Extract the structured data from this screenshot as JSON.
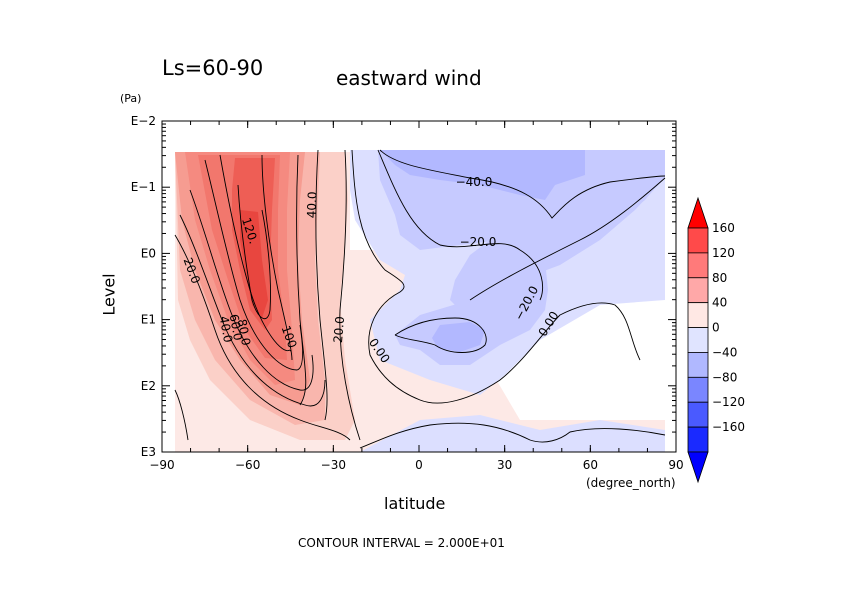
{
  "titles": {
    "left": "Ls=60-90",
    "center": "eastward wind",
    "contour_interval": "CONTOUR INTERVAL = 2.000E+01"
  },
  "chart_data": {
    "type": "contour",
    "title": "eastward wind",
    "subtitle": "Ls=60-90",
    "xlabel": "latitude",
    "xunit": "(degree_north)",
    "ylabel": "Level",
    "yunit": "(Pa)",
    "y_scale": "log",
    "y_inverted": true,
    "xlim": [
      -90,
      90
    ],
    "xticks": [
      -90,
      -60,
      -30,
      0,
      30,
      60,
      90
    ],
    "xtick_labels": [
      "−90",
      "−60",
      "−30",
      "0",
      "30",
      "60",
      "90"
    ],
    "yticks": [
      "E−2",
      "E−1",
      "E0",
      "E1",
      "E2",
      "E3"
    ],
    "contour_interval": 20,
    "contour_labels": [
      {
        "text": "120.",
        "lat": -62,
        "level": "3E-1"
      },
      {
        "text": "40.0",
        "lat": -37,
        "level": "1.5E-1"
      },
      {
        "text": "20.0",
        "lat": -82,
        "level": "2E0"
      },
      {
        "text": "40.0",
        "lat": -67,
        "level": "1.1E1"
      },
      {
        "text": "60.0",
        "lat": -65,
        "level": "1.0E1"
      },
      {
        "text": "80.0",
        "lat": -64,
        "level": "1.3E1"
      },
      {
        "text": "100.",
        "lat": -45,
        "level": "2E1"
      },
      {
        "text": "20.0",
        "lat": -26,
        "level": "1.5E1"
      },
      {
        "text": "0.00",
        "lat": -16,
        "level": "3E1"
      },
      {
        "text": "−40.0",
        "lat": 18,
        "level": "5E-2"
      },
      {
        "text": "−20.0",
        "lat": 17,
        "level": "7E-1"
      },
      {
        "text": "−20.0",
        "lat": 36,
        "level": "7E0"
      },
      {
        "text": "0.00",
        "lat": 46,
        "level": "1.1E1"
      }
    ],
    "colorbar": {
      "levels": [
        160,
        120,
        80,
        40,
        0,
        -40,
        -80,
        -120,
        -160
      ],
      "labels": [
        "160",
        "120",
        "80",
        "40",
        "0",
        "−40",
        "−80",
        "−120",
        "−160"
      ],
      "colors": [
        "#ff0000",
        "#ff4a4a",
        "#ff7a7a",
        "#ffa8a8",
        "#ffe8e4",
        "#e0e4ff",
        "#b0b8ff",
        "#7a86ff",
        "#4a5aff",
        "#1a2aff",
        "#0000ff"
      ]
    }
  }
}
